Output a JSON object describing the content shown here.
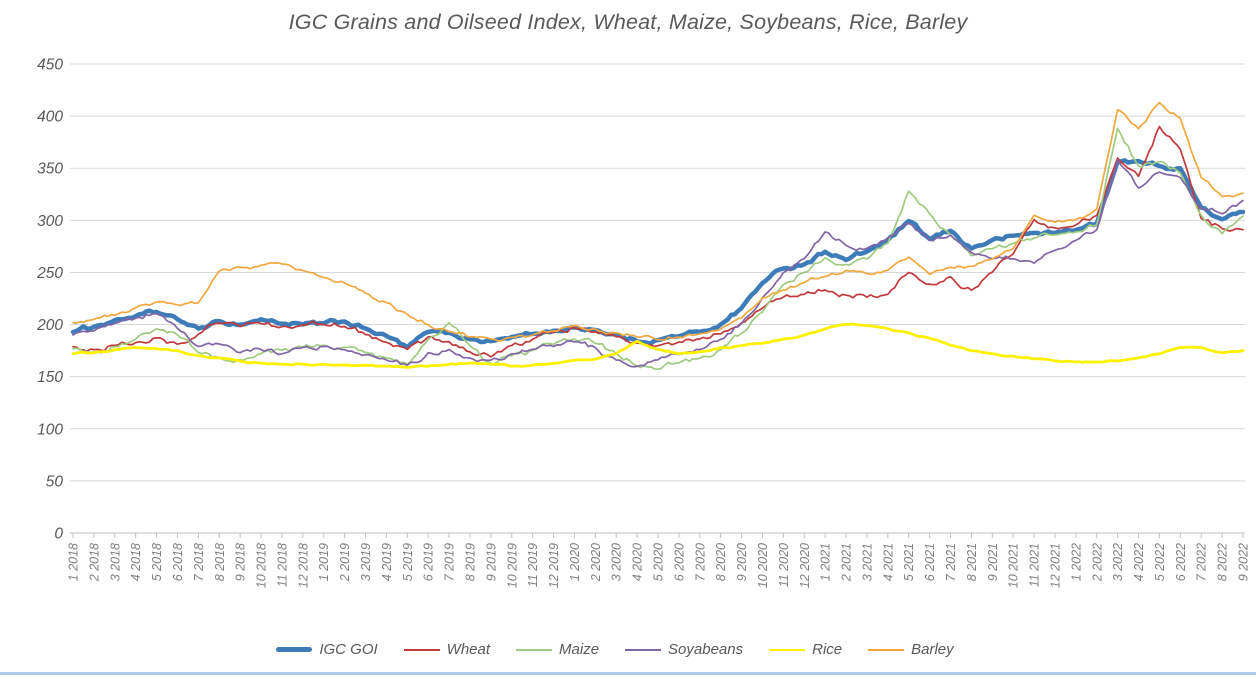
{
  "title": "IGC Grains and Oilseed Index, Wheat, Maize, Soybeans, Rice, Barley",
  "chart_data": {
    "type": "line",
    "title": "IGC Grains and Oilseed Index, Wheat, Maize, Soybeans, Rice, Barley",
    "xlabel": "",
    "ylabel": "",
    "ylim": [
      0,
      450
    ],
    "y_ticks": [
      0,
      50,
      100,
      150,
      200,
      250,
      300,
      350,
      400,
      450
    ],
    "grid": "horizontal",
    "legend_position": "bottom",
    "x": [
      "1 2018",
      "2 2018",
      "3 2018",
      "4 2018",
      "5 2018",
      "6 2018",
      "7 2018",
      "8 2018",
      "9 2018",
      "10 2018",
      "11 2018",
      "12 2018",
      "1 2019",
      "2 2019",
      "3 2019",
      "4 2019",
      "5 2019",
      "6 2019",
      "7 2019",
      "8 2019",
      "9 2019",
      "10 2019",
      "11 2019",
      "12 2019",
      "1 2020",
      "2 2020",
      "3 2020",
      "4 2020",
      "5 2020",
      "6 2020",
      "7 2020",
      "8 2020",
      "9 2020",
      "10 2020",
      "11 2020",
      "12 2020",
      "1 2021",
      "2 2021",
      "3 2021",
      "4 2021",
      "5 2021",
      "6 2021",
      "7 2021",
      "8 2021",
      "9 2021",
      "10 2021",
      "11 2021",
      "12 2021",
      "1 2022",
      "2 2022",
      "3 2022",
      "4 2022",
      "5 2022",
      "6 2022",
      "7 2022",
      "8 2022",
      "9 2022"
    ],
    "series": [
      {
        "name": "IGC GOI",
        "color": "#3d7cb8",
        "width": 4.5,
        "noise": 2.2,
        "values": [
          193,
          198,
          204,
          208,
          212,
          205,
          196,
          203,
          200,
          205,
          201,
          200,
          201,
          203,
          196,
          189,
          178,
          193,
          192,
          186,
          184,
          188,
          191,
          194,
          197,
          195,
          190,
          184,
          185,
          189,
          193,
          200,
          216,
          240,
          254,
          258,
          270,
          262,
          270,
          281,
          299,
          282,
          290,
          273,
          281,
          285,
          288,
          288,
          291,
          297,
          356,
          357,
          352,
          350,
          312,
          301,
          308
        ]
      },
      {
        "name": "Wheat",
        "color": "#c0393b",
        "width": 1.7,
        "noise": 3.0,
        "values": [
          179,
          176,
          180,
          183,
          187,
          181,
          191,
          201,
          198,
          201,
          198,
          200,
          200,
          198,
          190,
          183,
          176,
          188,
          184,
          174,
          169,
          180,
          186,
          192,
          197,
          193,
          188,
          182,
          180,
          183,
          186,
          191,
          202,
          216,
          226,
          229,
          233,
          228,
          226,
          229,
          250,
          239,
          246,
          233,
          250,
          268,
          301,
          293,
          296,
          305,
          360,
          342,
          390,
          368,
          302,
          292,
          291
        ]
      },
      {
        "name": "Maize",
        "color": "#9fcb80",
        "width": 1.7,
        "noise": 3.0,
        "values": [
          177,
          174,
          179,
          186,
          196,
          190,
          173,
          168,
          166,
          172,
          175,
          178,
          180,
          178,
          173,
          168,
          162,
          186,
          202,
          180,
          163,
          170,
          175,
          181,
          186,
          182,
          172,
          160,
          157,
          163,
          168,
          176,
          192,
          212,
          238,
          250,
          264,
          258,
          263,
          278,
          328,
          306,
          286,
          266,
          273,
          278,
          283,
          286,
          289,
          296,
          388,
          352,
          356,
          345,
          305,
          287,
          304
        ]
      },
      {
        "name": "Soyabeans",
        "color": "#8265a7",
        "width": 1.7,
        "noise": 2.8,
        "values": [
          190,
          194,
          201,
          206,
          210,
          196,
          179,
          181,
          173,
          176,
          172,
          178,
          179,
          176,
          171,
          166,
          161,
          173,
          176,
          168,
          166,
          172,
          176,
          179,
          183,
          178,
          166,
          160,
          166,
          171,
          176,
          186,
          201,
          226,
          250,
          263,
          289,
          276,
          273,
          283,
          297,
          281,
          286,
          269,
          263,
          263,
          259,
          271,
          281,
          291,
          358,
          331,
          346,
          341,
          312,
          306,
          319
        ]
      },
      {
        "name": "Rice",
        "color": "#fdf000",
        "width": 2.8,
        "noise": 0.8,
        "values": [
          172,
          173,
          176,
          178,
          177,
          175,
          170,
          168,
          165,
          163,
          162,
          162,
          162,
          161,
          161,
          160,
          159,
          160,
          162,
          163,
          162,
          160,
          161,
          163,
          166,
          167,
          172,
          184,
          176,
          172,
          174,
          178,
          180,
          182,
          186,
          190,
          196,
          200,
          199,
          196,
          192,
          187,
          180,
          175,
          172,
          170,
          167,
          165,
          164,
          164,
          165,
          168,
          172,
          178,
          178,
          173,
          175
        ]
      },
      {
        "name": "Barley",
        "color": "#f2a73f",
        "width": 1.7,
        "noise": 2.2,
        "values": [
          202,
          205,
          209,
          216,
          222,
          219,
          221,
          251,
          255,
          257,
          258,
          252,
          245,
          240,
          230,
          221,
          210,
          200,
          193,
          188,
          186,
          188,
          190,
          194,
          199,
          196,
          192,
          188,
          185,
          188,
          191,
          196,
          206,
          226,
          233,
          240,
          246,
          252,
          249,
          252,
          265,
          248,
          255,
          256,
          263,
          273,
          305,
          298,
          301,
          311,
          406,
          388,
          413,
          398,
          341,
          323,
          326
        ]
      }
    ],
    "colors": {
      "axis_text": "#595959",
      "gridline": "#d9d9d9",
      "axis_line": "#bfbfbf",
      "bottom_rule": "#aecbea"
    }
  },
  "legend": {
    "items": [
      {
        "label": "IGC GOI"
      },
      {
        "label": "Wheat"
      },
      {
        "label": "Maize"
      },
      {
        "label": "Soyabeans"
      },
      {
        "label": "Rice"
      },
      {
        "label": "Barley"
      }
    ]
  }
}
